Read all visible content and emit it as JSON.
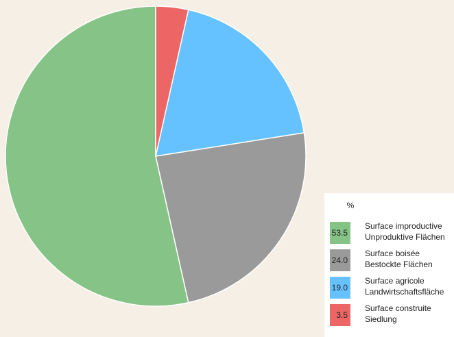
{
  "chart_data": {
    "type": "pie",
    "unit": "%",
    "categories": [
      "Surface improductive",
      "Surface boisée",
      "Surface agricole",
      "Surface construite"
    ],
    "categories_de": [
      "Unproduktive Flächen",
      "Bestockte Flächen",
      "Landwirtschaftsfläche",
      "Siedlung"
    ],
    "values": [
      53.5,
      24.0,
      19.0,
      3.5
    ],
    "value_labels": [
      "53.5",
      "24.0",
      "19.0",
      "3.5"
    ],
    "colors": [
      "#86c386",
      "#9a9a9a",
      "#66c2ff",
      "#ec6666"
    ],
    "counterclockwise": true
  }
}
